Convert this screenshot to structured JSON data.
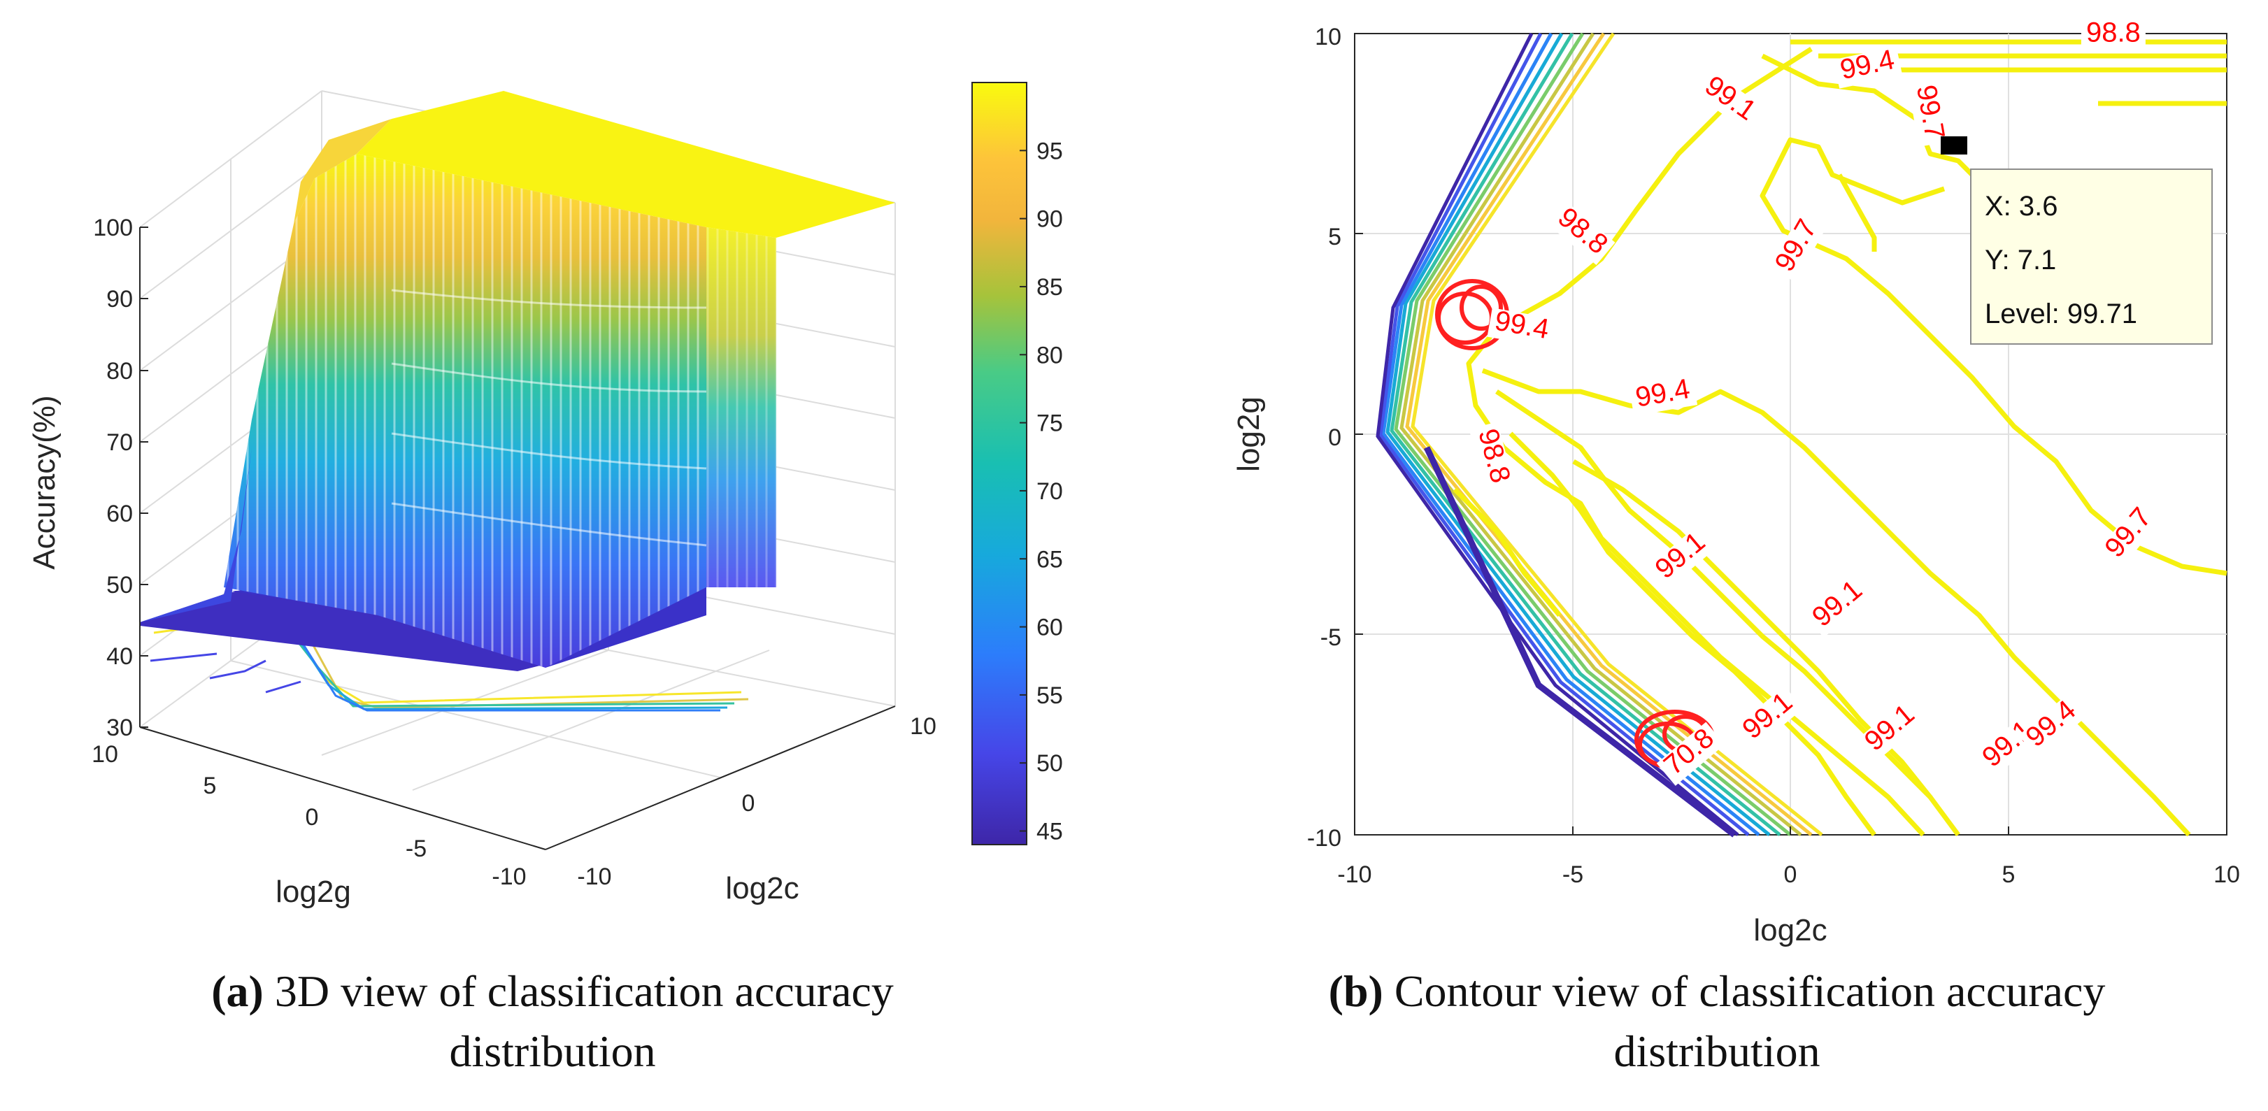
{
  "chart_data": [
    {
      "type": "surface3d",
      "panel": "a",
      "xlabel": "log2g",
      "ylabel": "log2c",
      "zlabel": "Accuracy(%)",
      "x_ticks": [
        "10",
        "5",
        "0",
        "-5",
        "-10"
      ],
      "y_ticks": [
        "-10",
        "0",
        "10"
      ],
      "z_ticks": [
        "100",
        "90",
        "80",
        "70",
        "60",
        "50",
        "40",
        "30"
      ],
      "zlim": [
        30,
        100
      ],
      "colorbar": {
        "ticks": [
          "95",
          "90",
          "85",
          "80",
          "75",
          "70",
          "65",
          "60",
          "55",
          "50",
          "45"
        ],
        "range": [
          44,
          100
        ],
        "colormap": "parula"
      },
      "caption_label": "(a)",
      "caption_text": " 3D view of classification accuracy",
      "caption_text2": "distribution"
    },
    {
      "type": "contour",
      "panel": "b",
      "xlabel": "log2c",
      "ylabel": "log2g",
      "xlim": [
        -10,
        10
      ],
      "ylim": [
        -10,
        10
      ],
      "x_ticks": [
        "-10",
        "-5",
        "0",
        "5",
        "10"
      ],
      "y_ticks": [
        "10",
        "5",
        "0",
        "-5",
        "-10"
      ],
      "grid": true,
      "contour_labels": [
        {
          "text": "98.8",
          "x": 7.4,
          "y": 9.8,
          "angle": 0
        },
        {
          "text": "99.4",
          "x": 1.8,
          "y": 9.0,
          "angle": 12
        },
        {
          "text": "99.1",
          "x": -1.5,
          "y": 8.2,
          "angle": -35
        },
        {
          "text": "99.7",
          "x": 3.0,
          "y": 8.0,
          "angle": -80
        },
        {
          "text": "98.8",
          "x": -4.9,
          "y": 4.9,
          "angle": -40
        },
        {
          "text": "99.7",
          "x": 0.3,
          "y": 4.6,
          "angle": 60
        },
        {
          "text": "99.4",
          "x": -6.2,
          "y": 2.5,
          "angle": -10
        },
        {
          "text": "99.4",
          "x": -2.9,
          "y": 0.8,
          "angle": 10
        },
        {
          "text": "98.8",
          "x": -7.0,
          "y": -0.6,
          "angle": -75
        },
        {
          "text": "99.7",
          "x": 7.9,
          "y": -2.6,
          "angle": 50
        },
        {
          "text": "99.1",
          "x": -2.4,
          "y": -3.2,
          "angle": 40
        },
        {
          "text": "99.1",
          "x": 1.2,
          "y": -4.4,
          "angle": 40
        },
        {
          "text": "99.1",
          "x": -0.4,
          "y": -7.2,
          "angle": 40
        },
        {
          "text": "99.1",
          "x": 2.4,
          "y": -7.5,
          "angle": 40
        },
        {
          "text": "99.1",
          "x": 5.1,
          "y": -7.9,
          "angle": 40
        },
        {
          "text": "99.4",
          "x": 6.1,
          "y": -7.4,
          "angle": 40
        },
        {
          "text": "70.8",
          "x": -2.2,
          "y": -8.1,
          "angle": 40
        }
      ],
      "datatip": {
        "x_label": "X: 3.6",
        "y_label": "Y: 7.1",
        "level_label": "Level: 99.71",
        "x": 3.6,
        "y": 7.1
      },
      "caption_label": "(b)",
      "caption_text": " Contour view of classification accuracy",
      "caption_text2": "distribution"
    }
  ]
}
